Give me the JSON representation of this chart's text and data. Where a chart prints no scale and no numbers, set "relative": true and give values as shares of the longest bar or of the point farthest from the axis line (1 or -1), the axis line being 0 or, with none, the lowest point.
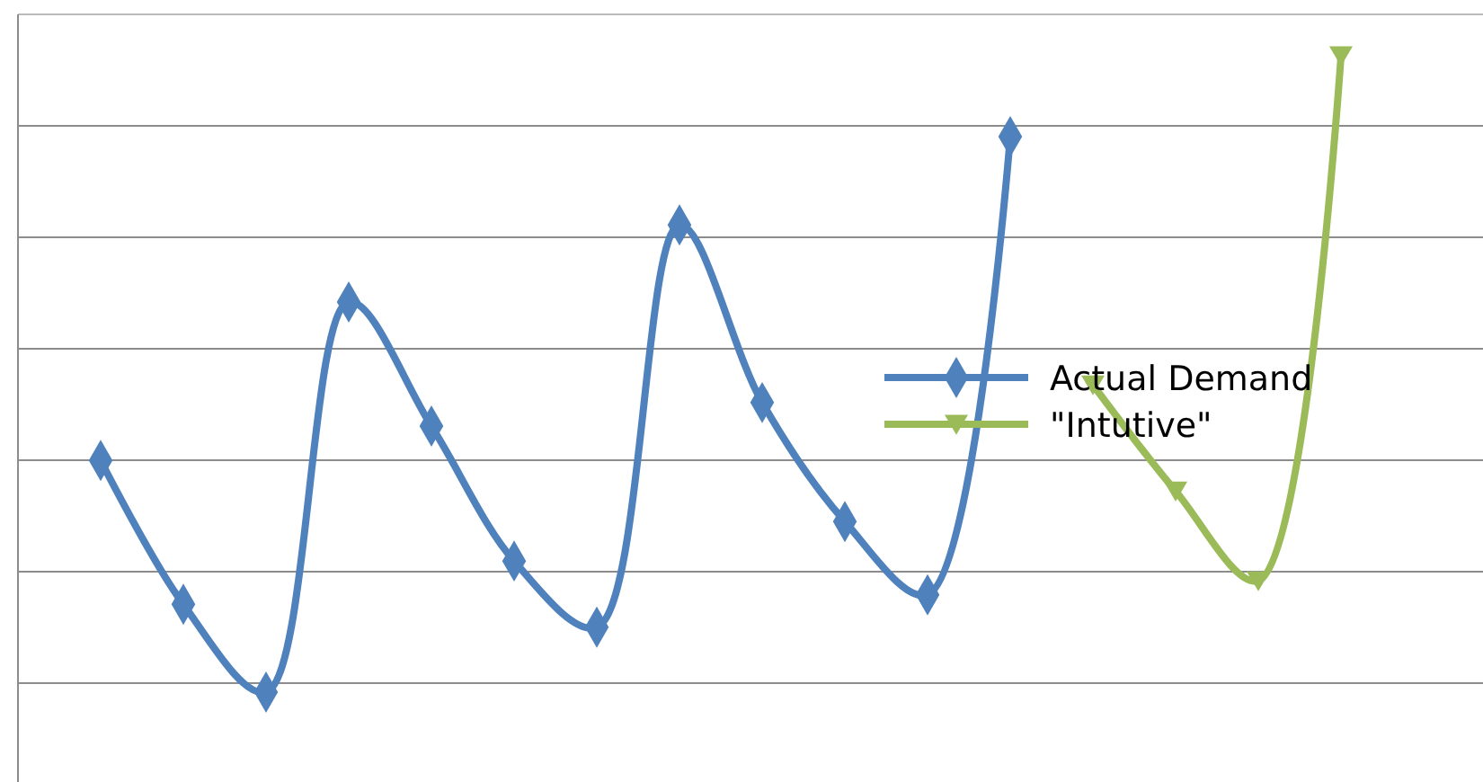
{
  "chart_data": {
    "type": "line",
    "relative": true,
    "grid": true,
    "legend": "right",
    "line_style": "solid",
    "categories": [
      null,
      null,
      null,
      null,
      null,
      null,
      null,
      null,
      null,
      null,
      null,
      null,
      null,
      null,
      null,
      null
    ],
    "series": [
      {
        "name": "Actual Demand",
        "color": "#4f81bd",
        "marker": "diamond",
        "values": [
          0.364,
          0.138,
          0,
          0.613,
          0.418,
          0.206,
          0.102,
          0.734,
          0.455,
          0.268,
          0.153,
          0.873,
          null,
          null,
          null,
          null
        ]
      },
      {
        "name": "\"Intutive\"",
        "color": "#9bbb59",
        "marker": "triangle",
        "values": [
          null,
          null,
          null,
          null,
          null,
          null,
          null,
          null,
          null,
          null,
          null,
          null,
          0.483,
          0.316,
          0.175,
          1
        ]
      }
    ]
  }
}
